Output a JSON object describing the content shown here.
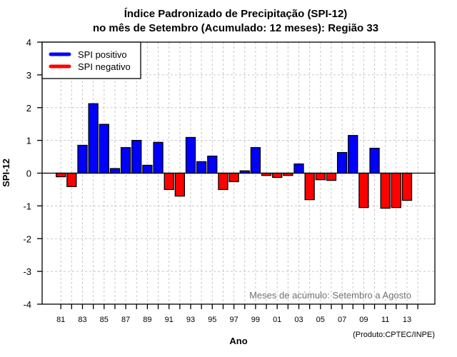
{
  "chart_data": {
    "type": "bar",
    "title": "Índice Padronizado de Precipitação (SPI-12)",
    "subtitle": "no mês de Setembro (Acumulado: 12 meses): Região 33",
    "xlabel": "Ano",
    "ylabel": "SPI-12",
    "ylim": [
      -4,
      4
    ],
    "yticks": [
      "4",
      "3",
      "2",
      "1",
      "0",
      "-1",
      "-2",
      "-3",
      "-4"
    ],
    "ytick_values": [
      4,
      3,
      2,
      1,
      0,
      -1,
      -2,
      -3,
      -4
    ],
    "xticks_labeled": [
      "81",
      "83",
      "85",
      "87",
      "89",
      "91",
      "93",
      "95",
      "97",
      "99",
      "01",
      "03",
      "05",
      "07",
      "09",
      "11",
      "13"
    ],
    "grid": true,
    "legend_position": "top-left",
    "legend": [
      {
        "label": "SPI positivo",
        "color": "#0000ff"
      },
      {
        "label": "SPI negativo",
        "color": "#ff0000"
      }
    ],
    "annotation": "Meses de acúmulo: Setembro a Agosto",
    "credit": "(Produto:CPTEC/INPE)",
    "categories": [
      "1981",
      "1982",
      "1983",
      "1984",
      "1985",
      "1986",
      "1987",
      "1988",
      "1989",
      "1990",
      "1991",
      "1992",
      "1993",
      "1994",
      "1995",
      "1996",
      "1997",
      "1998",
      "1999",
      "2000",
      "2001",
      "2002",
      "2003",
      "2004",
      "2005",
      "2006",
      "2007",
      "2008",
      "2009",
      "2010",
      "2011",
      "2012",
      "2013"
    ],
    "values": [
      -0.11,
      -0.41,
      0.85,
      2.12,
      1.49,
      0.14,
      0.78,
      1.0,
      0.24,
      0.94,
      -0.5,
      -0.7,
      1.09,
      0.35,
      0.52,
      -0.5,
      -0.26,
      0.07,
      0.78,
      -0.07,
      -0.13,
      -0.07,
      0.28,
      -0.81,
      -0.2,
      -0.22,
      0.63,
      1.15,
      -1.05,
      0.76,
      -1.07,
      -1.05,
      -0.83
    ],
    "colors": {
      "positive": "#0000ff",
      "negative": "#ff0000",
      "grid": "#c8c8c8",
      "axis": "#000000"
    }
  }
}
